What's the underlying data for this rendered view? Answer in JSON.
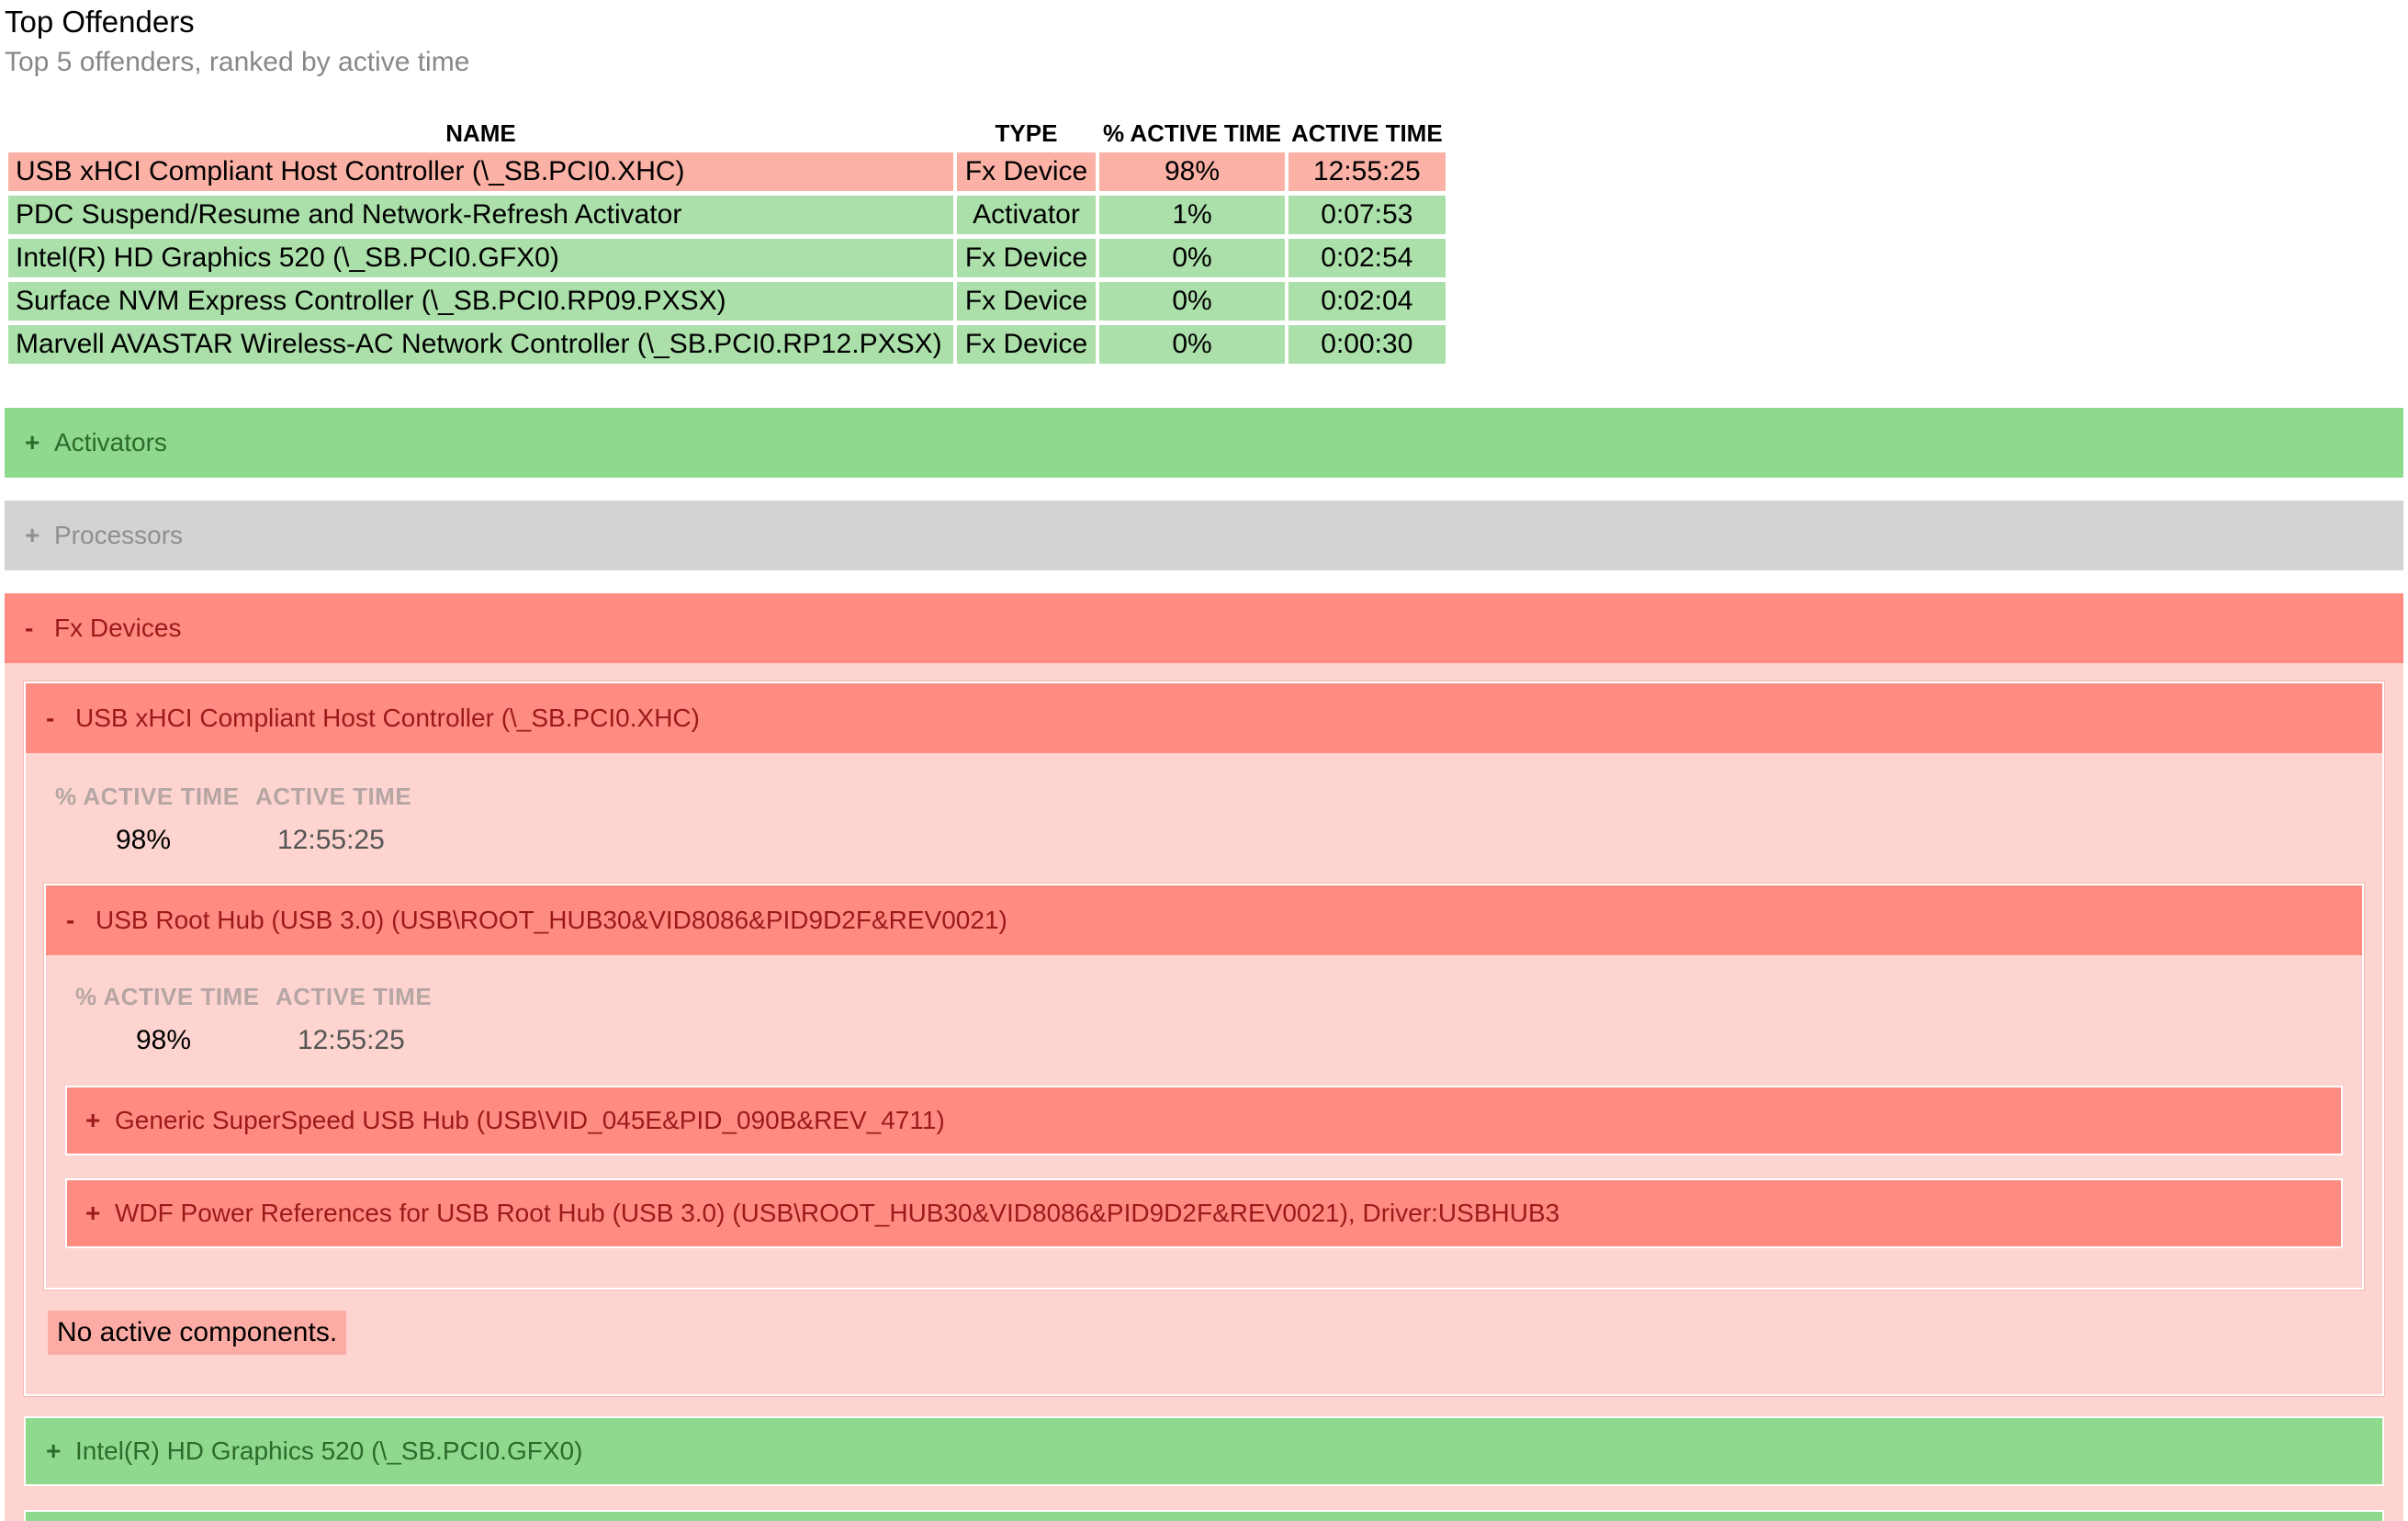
{
  "header": {
    "title": "Top Offenders",
    "subtitle": "Top 5 offenders, ranked by active time"
  },
  "offenders_table": {
    "columns": [
      "NAME",
      "TYPE",
      "% ACTIVE TIME",
      "ACTIVE TIME"
    ],
    "rows": [
      {
        "name": "USB xHCI Compliant Host Controller (\\_SB.PCI0.XHC)",
        "type": "Fx Device",
        "pct": "98%",
        "time": "12:55:25",
        "status": "red"
      },
      {
        "name": "PDC Suspend/Resume and Network-Refresh Activator",
        "type": "Activator",
        "pct": "1%",
        "time": "0:07:53",
        "status": "green"
      },
      {
        "name": "Intel(R) HD Graphics 520 (\\_SB.PCI0.GFX0)",
        "type": "Fx Device",
        "pct": "0%",
        "time": "0:02:54",
        "status": "green"
      },
      {
        "name": "Surface NVM Express Controller (\\_SB.PCI0.RP09.PXSX)",
        "type": "Fx Device",
        "pct": "0%",
        "time": "0:02:04",
        "status": "green"
      },
      {
        "name": "Marvell AVASTAR Wireless-AC Network Controller (\\_SB.PCI0.RP12.PXSX)",
        "type": "Fx Device",
        "pct": "0%",
        "time": "0:00:30",
        "status": "green"
      }
    ]
  },
  "sections": {
    "activators": {
      "toggle": "+",
      "label": "Activators"
    },
    "processors": {
      "toggle": "+",
      "label": "Processors"
    },
    "fx_devices": {
      "toggle": "-",
      "label": "Fx Devices"
    }
  },
  "usb_controller": {
    "toggle": "-",
    "label": "USB xHCI Compliant Host Controller (\\_SB.PCI0.XHC)",
    "pct_label": "% ACTIVE TIME",
    "time_label": "ACTIVE TIME",
    "pct": "98%",
    "time": "12:55:25"
  },
  "usb_root_hub": {
    "toggle": "-",
    "label": "USB Root Hub (USB 3.0) (USB\\ROOT_HUB30&VID8086&PID9D2F&REV0021)",
    "pct_label": "% ACTIVE TIME",
    "time_label": "ACTIVE TIME",
    "pct": "98%",
    "time": "12:55:25"
  },
  "generic_hub": {
    "toggle": "+",
    "label": "Generic SuperSpeed USB Hub (USB\\VID_045E&PID_090B&REV_4711)"
  },
  "wdf_refs": {
    "toggle": "+",
    "label": "WDF Power References for USB Root Hub (USB 3.0) (USB\\ROOT_HUB30&VID8086&PID9D2F&REV0021), Driver:USBHUB3"
  },
  "no_active_components": "No active components.",
  "intel_graphics": {
    "toggle": "+",
    "label": "Intel(R) HD Graphics 520 (\\_SB.PCI0.GFX0)"
  },
  "colors": {
    "red_header": "#ff8c82",
    "red_row": "#fbb1a6",
    "red_panel": "#fed4d0",
    "green_header": "#8fd98f",
    "green_row": "#abe0aa",
    "grey_header": "#d3d3d3"
  }
}
